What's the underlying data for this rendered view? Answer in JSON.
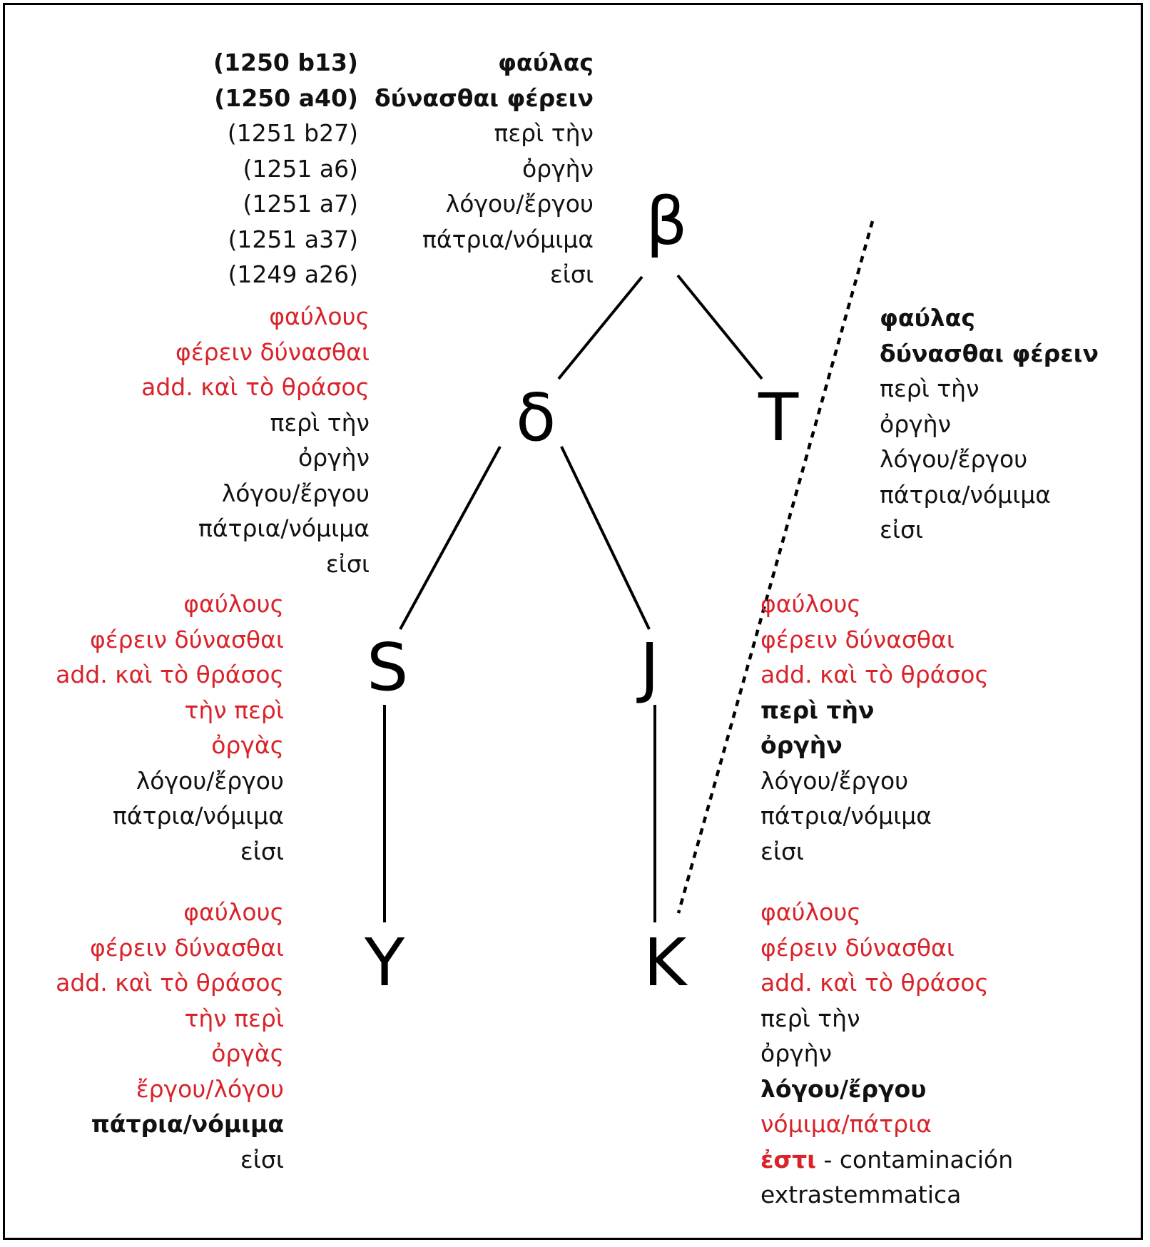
{
  "colors": {
    "variant": "#d9232a",
    "text": "#111111",
    "line": "#000000"
  },
  "nodes": {
    "beta": "β",
    "delta": "δ",
    "T": "T",
    "S": "S",
    "J": "J",
    "Y": "Y",
    "K": "K"
  },
  "references": [
    "(1250 b13)",
    "(1250 a40)",
    "(1251 b27)",
    "(1251 a6)",
    "(1251 a7)",
    "(1251 a37)",
    "(1249 a26)"
  ],
  "readings": {
    "beta": [
      "φαύλας",
      "δύνασθαι φέρειν",
      "περὶ τὴν",
      "ὀργὴν",
      "λόγου/ἔργου",
      "πάτρια/νόμιμα",
      "εἰσι"
    ],
    "T": [
      "φαύλας",
      "δύνασθαι φέρειν",
      "περὶ τὴν",
      "ὀργὴν",
      "λόγου/ἔργου",
      "πάτρια/νόμιμα",
      "εἰσι"
    ],
    "delta": [
      "φαύλους",
      "φέρειν δύνασθαι",
      "add. καὶ τὸ θράσος",
      "περὶ τὴν",
      "ὀργὴν",
      "λόγου/ἔργου",
      "πάτρια/νόμιμα",
      "εἰσι"
    ],
    "S": [
      "φαύλους",
      "φέρειν δύνασθαι",
      "add. καὶ τὸ θράσος",
      "τὴν περὶ",
      "ὀργὰς",
      "λόγου/ἔργου",
      "πάτρια/νόμιμα",
      "εἰσι"
    ],
    "J": [
      "φαύλους",
      "φέρειν δύνασθαι",
      "add. καὶ τὸ θράσος",
      "περὶ τὴν",
      "ὀργὴν",
      "λόγου/ἔργου",
      "πάτρια/νόμιμα",
      "εἰσι"
    ],
    "Y": [
      "φαύλους",
      "φέρειν δύνασθαι",
      "add. καὶ τὸ θράσος",
      "τὴν περὶ",
      "ὀργὰς",
      "ἔργου/λόγου",
      "πάτρια/νόμιμα",
      "εἰσι"
    ],
    "K": [
      "φαύλους",
      "φέρειν δύνασθαι",
      "add. καὶ τὸ θράσος",
      "περὶ τὴν",
      "ὀργὴν",
      "λόγου/ἔργου",
      "νόμιμα/πάτρια",
      "ἐστι",
      " - contaminación",
      "extrastemmatica"
    ]
  }
}
